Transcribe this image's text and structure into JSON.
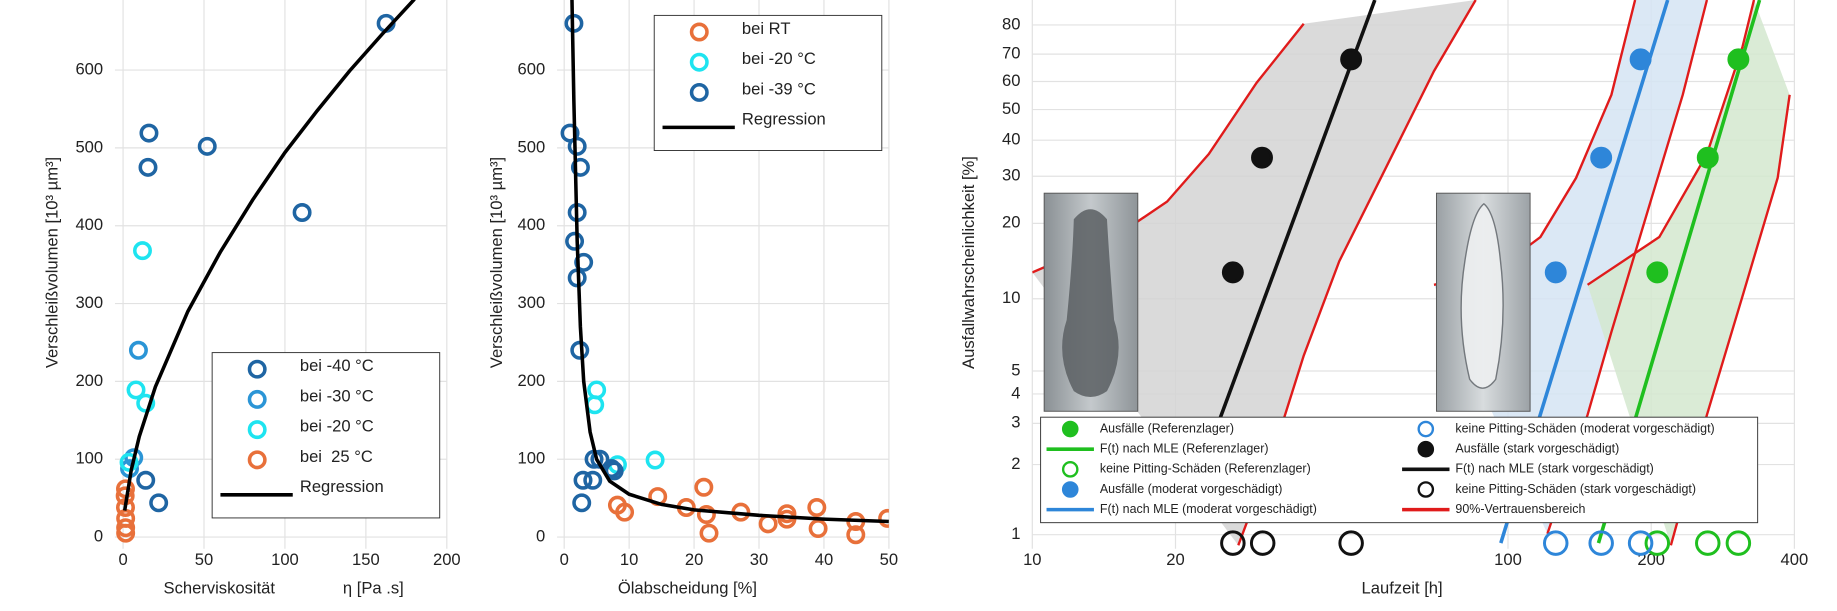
{
  "chart_data": [
    {
      "type": "scatter",
      "xlabel": "Scherviskosität",
      "xunit": "η [Pa .s]",
      "ylabel": "Verschleißvolumen [10³ µm³]",
      "xlim": [
        -5,
        200
      ],
      "ylim": [
        -15,
        690
      ],
      "xticks": [
        0,
        50,
        100,
        150,
        200
      ],
      "yticks": [
        0,
        100,
        200,
        300,
        400,
        500,
        600
      ],
      "grid": true,
      "legend": "lower right",
      "series": [
        {
          "name": "bei -40 °C",
          "color": "#1f65a3",
          "mode": "markers",
          "marker": "open",
          "x": [
            162.5,
            52,
            16,
            15.4,
            110.6,
            22,
            14
          ],
          "values": [
            660,
            502,
            519,
            475,
            417,
            44,
            73
          ]
        },
        {
          "name": "bei -30 °C",
          "color": "#2b95d6",
          "mode": "markers",
          "marker": "open",
          "x": [
            9.5,
            6.6,
            4
          ],
          "values": [
            240,
            102,
            88
          ]
        },
        {
          "name": "bei -20 °C",
          "color": "#1ee4f0",
          "mode": "markers",
          "marker": "open",
          "x": [
            12,
            8,
            14,
            3.7
          ],
          "values": [
            368,
            189,
            172,
            96
          ]
        },
        {
          "name": "bei  25 °C",
          "color": "#e8703a",
          "mode": "markers",
          "marker": "open",
          "x": [
            1.5,
            1.3,
            1.5,
            1.6,
            1.6,
            1.6
          ],
          "values": [
            62,
            53,
            38,
            24,
            12,
            5
          ]
        },
        {
          "name": "Regression",
          "color": "#000000",
          "mode": "line",
          "x": [
            1,
            5,
            10,
            20,
            40,
            60,
            80,
            100,
            120,
            140,
            160,
            180
          ],
          "values": [
            34,
            86,
            129,
            193,
            290,
            366,
            433,
            494,
            548,
            599,
            646,
            691
          ]
        }
      ]
    },
    {
      "type": "scatter",
      "xlabel": "Ölabscheidung [%]",
      "ylabel": "Verschleißvolumen [10³ µm³]",
      "xlim": [
        -1.1,
        50
      ],
      "ylim": [
        -15,
        690
      ],
      "xticks": [
        0,
        10,
        20,
        30,
        40,
        50
      ],
      "yticks": [
        0,
        100,
        200,
        300,
        400,
        500,
        600
      ],
      "grid": true,
      "legend": "upper right",
      "series": [
        {
          "name": "bei RT",
          "color": "#e8703a",
          "mode": "markers",
          "marker": "open",
          "x": [
            8.2,
            9.3,
            14.4,
            18.8,
            21.5,
            21.9,
            22.3,
            27.2,
            31.4,
            34.3,
            34.3,
            38.9,
            39.1,
            44.9,
            44.9,
            49.8
          ],
          "values": [
            41,
            32,
            52,
            38,
            64,
            29,
            5,
            32,
            17,
            30,
            23,
            38,
            11,
            20,
            3,
            24
          ]
        },
        {
          "name": "bei -20 °C",
          "color": "#1ee4f0",
          "mode": "markers",
          "marker": "open",
          "x": [
            5,
            4.7,
            8.2,
            14
          ],
          "values": [
            189,
            170,
            93,
            99
          ]
        },
        {
          "name": "bei -39 °C",
          "color": "#1f65a3",
          "mode": "markers",
          "marker": "open",
          "x": [
            1.5,
            0.9,
            2,
            2.5,
            2,
            1.6,
            3,
            2,
            2.4,
            4.6,
            5.5,
            2.9,
            4.4,
            2.7,
            7.3,
            7.7
          ],
          "values": [
            660,
            519,
            502,
            475,
            417,
            380,
            353,
            333,
            240,
            100,
            100,
            73,
            73,
            44,
            88,
            85
          ]
        },
        {
          "name": "Regression",
          "color": "#000000",
          "mode": "line",
          "x": [
            1.2,
            1.5,
            2,
            2.5,
            3,
            4,
            5,
            7,
            10,
            15,
            20,
            30,
            40,
            50
          ],
          "values": [
            690,
            560,
            380,
            270,
            200,
            135,
            100,
            72,
            55,
            42,
            35,
            28,
            23,
            20
          ]
        }
      ]
    },
    {
      "type": "scatter",
      "xlabel": "Laufzeit [h]",
      "ylabel": "Ausfallwahrscheinlichkeit [%]",
      "xscale": "log",
      "yscale": "weibull",
      "xlim": [
        10,
        400
      ],
      "ylim": [
        0.87,
        87.3
      ],
      "xticks": [
        10,
        20,
        100,
        200,
        400
      ],
      "yticks": [
        1,
        2,
        3,
        4,
        5,
        10,
        20,
        30,
        40,
        50,
        60,
        70,
        80
      ],
      "grid": true,
      "legend": "lower center",
      "band_name": "90%-Vertrauensbereich",
      "band_color": "#e01b1b",
      "bands": [
        {
          "fill": "#d4d4d4",
          "upper": {
            "x": [
              10,
              14.9,
              19.2,
              23.5,
              29.6,
              37.2
            ],
            "values": [
              12.8,
              17.7,
              24.2,
              35.9,
              59.5,
              80.4
            ]
          },
          "lower": {
            "x": [
              27.1,
              32.2,
              37.2,
              44.2,
              55.6,
              69.9,
              85.5
            ],
            "values": [
              0.9,
              2.3,
              5.8,
              14.2,
              32.6,
              63.8,
              87.3
            ]
          }
        },
        {
          "fill": "#d5e4f3",
          "upper": {
            "x": [
              69.9,
              93.1,
              117,
              139,
              165,
              185
            ],
            "values": [
              11.4,
              12.8,
              17.7,
              29.6,
              55.2,
              87.3
            ]
          },
          "lower": {
            "x": [
              121,
              147,
              165,
              196,
              233,
              262
            ],
            "values": [
              1.01,
              3.26,
              7.29,
              21.9,
              55.2,
              87.3
            ]
          }
        },
        {
          "fill": "#d4e8cf",
          "upper": {
            "x": [
              147,
              208,
              262,
              311,
              329
            ],
            "values": [
              11.4,
              17.7,
              35.9,
              72.4,
              87.3
            ]
          },
          "lower": {
            "x": [
              220,
              262,
              311,
              369,
              391
            ],
            "values": [
              0.9,
              3.26,
              10.2,
              29.6,
              55.2
            ]
          }
        }
      ],
      "series": [
        {
          "name": "Ausfälle (Referenzlager)",
          "color": "#1fbf1f",
          "mode": "markers",
          "marker": "filled",
          "x": [
            206,
            263,
            305
          ],
          "values": [
            12.8,
            34.9,
            68.1
          ]
        },
        {
          "name": "F(t) nach MLE (Referenzlager)",
          "color": "#1fbf1f",
          "mode": "line",
          "x": [
            155,
            338
          ],
          "values": [
            0.92,
            87.3
          ]
        },
        {
          "name": "keine Pitting-Schäden (Referenzlager)",
          "color": "#1fbf1f",
          "mode": "markers",
          "marker": "open",
          "x": [
            206,
            263,
            305
          ],
          "values": [
            0.92,
            0.92,
            0.92
          ]
        },
        {
          "name": "Ausfälle (moderat vorgeschädigt)",
          "color": "#2e86d9",
          "mode": "markers",
          "marker": "filled",
          "x": [
            126,
            157,
            190
          ],
          "values": [
            12.8,
            34.9,
            68.1
          ]
        },
        {
          "name": "F(t) nach MLE (moderat vorgeschädigt)",
          "color": "#2e86d9",
          "mode": "line",
          "x": [
            96.6,
            216.6
          ],
          "values": [
            0.92,
            87.3
          ]
        },
        {
          "name": "keine Pitting-Schäden (moderat vorgeschädigt)",
          "color": "#2e86d9",
          "mode": "markers",
          "marker": "open",
          "x": [
            126,
            157,
            190
          ],
          "values": [
            0.92,
            0.92,
            0.92
          ]
        },
        {
          "name": "Ausfälle (stark vorgeschädigt)",
          "color": "#111111",
          "mode": "markers",
          "marker": "filled",
          "x": [
            26.4,
            30.4,
            46.8
          ],
          "values": [
            12.8,
            34.9,
            68.1
          ]
        },
        {
          "name": "F(t) nach MLE (stark vorgeschädigt)",
          "color": "#111111",
          "mode": "line",
          "x": [
            21.3,
            52.5
          ],
          "values": [
            1.36,
            87.3
          ]
        },
        {
          "name": "keine Pitting-Schäden (stark vorgeschädigt)",
          "color": "#111111",
          "mode": "markers",
          "marker": "open",
          "x": [
            26.4,
            30.5,
            46.8
          ],
          "values": [
            0.92,
            0.92,
            0.92
          ]
        }
      ]
    }
  ]
}
